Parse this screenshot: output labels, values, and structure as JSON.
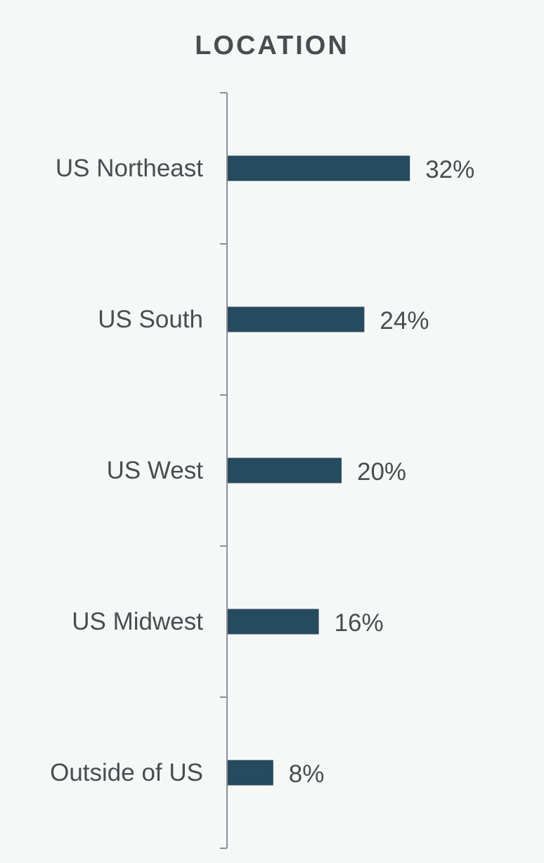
{
  "chart_data": {
    "type": "bar",
    "orientation": "horizontal",
    "title": "LOCATION",
    "categories": [
      "US Northeast",
      "US South",
      "US West",
      "US Midwest",
      "Outside of US"
    ],
    "values": [
      32,
      24,
      20,
      16,
      8
    ],
    "value_labels": [
      "32%",
      "24%",
      "20%",
      "16%",
      "8%"
    ],
    "unit": "%",
    "xlim": [
      0,
      40
    ],
    "grid": false,
    "legend": "none",
    "bar_color": "#264a5e",
    "axis_color": "#8a9099",
    "text_color": "#4a4d50"
  }
}
